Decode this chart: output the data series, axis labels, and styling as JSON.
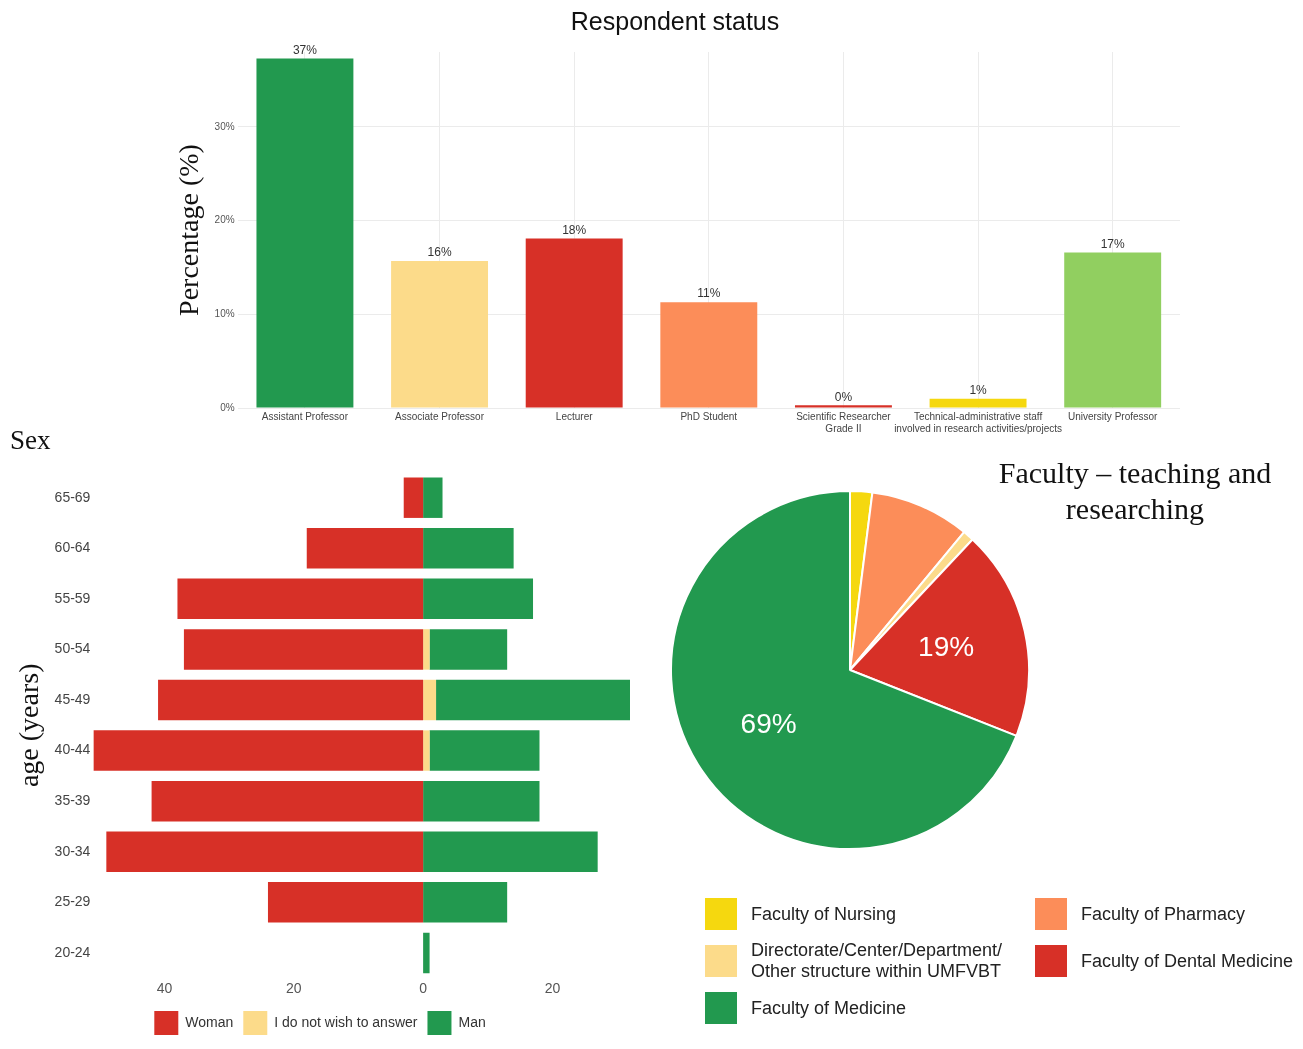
{
  "chart_data": [
    {
      "type": "bar",
      "title": "Respondent status",
      "ylabel": "Percentage (%)",
      "categories": [
        "Assistant Professor",
        "Associate Professor",
        "Lecturer",
        "PhD Student",
        "Scientific Researcher\nGrade II",
        "Technical-administrative staff\ninvolved in research activities/projects",
        "University Professor"
      ],
      "values": [
        37.3,
        15.7,
        18.1,
        11.3,
        0.3,
        1,
        16.6
      ],
      "colors": [
        "#22994f",
        "#fcdb8a",
        "#d73027",
        "#fc8d59",
        "#d73027",
        "#f5d80f",
        "#91cf60"
      ],
      "value_labels": [
        "37%",
        "16%",
        "18%",
        "11%",
        "0%",
        "1%",
        "17%"
      ],
      "ylim": [
        0,
        38
      ],
      "yticks": [
        {
          "value": 0,
          "label": "0%"
        },
        {
          "value": 10,
          "label": "10%"
        },
        {
          "value": 20,
          "label": "20%"
        },
        {
          "value": 30,
          "label": "30%"
        }
      ],
      "grid": true
    },
    {
      "type": "bar",
      "orientation": "horizontal",
      "stacked": true,
      "title": "Sex",
      "ylabel": "age (years)",
      "categories": [
        "65-69",
        "60-64",
        "55-59",
        "50-54",
        "45-49",
        "40-44",
        "35-39",
        "30-34",
        "25-29",
        "20-24"
      ],
      "series": [
        {
          "name": "Woman",
          "color": "#d73027",
          "values": [
            -3,
            -18,
            -38,
            -37,
            -41,
            -51,
            -42,
            -49,
            -24,
            0
          ]
        },
        {
          "name": "I do not wish to answer",
          "color": "#fcdb8a",
          "values": [
            0,
            0,
            0,
            1,
            2,
            1,
            0,
            0,
            0,
            0
          ]
        },
        {
          "name": "Man",
          "color": "#22994f",
          "values": [
            3,
            14,
            17,
            12,
            30,
            17,
            18,
            27,
            13,
            1
          ]
        }
      ],
      "xlim": [
        -51,
        32
      ],
      "xticks": [
        {
          "value": -40,
          "label": "40"
        },
        {
          "value": -20,
          "label": "20"
        },
        0,
        20
      ],
      "grid": false,
      "legend": "bottom"
    },
    {
      "type": "pie",
      "title": "Faculty – teaching and researching",
      "categories": [
        "Faculty of Nursing",
        "Faculty of Pharmacy",
        "Directorate/Center/Department/ Other structure within UMFVBT",
        "Faculty of Dental Medicine",
        "Faculty of Medicine"
      ],
      "values": [
        2,
        9,
        1,
        19,
        69
      ],
      "colors": [
        "#f5d80f",
        "#fc8d59",
        "#fcdb8a",
        "#d73027",
        "#22994f"
      ],
      "value_labels": [
        null,
        null,
        null,
        "19%",
        "69%"
      ],
      "legend": "bottom"
    }
  ]
}
